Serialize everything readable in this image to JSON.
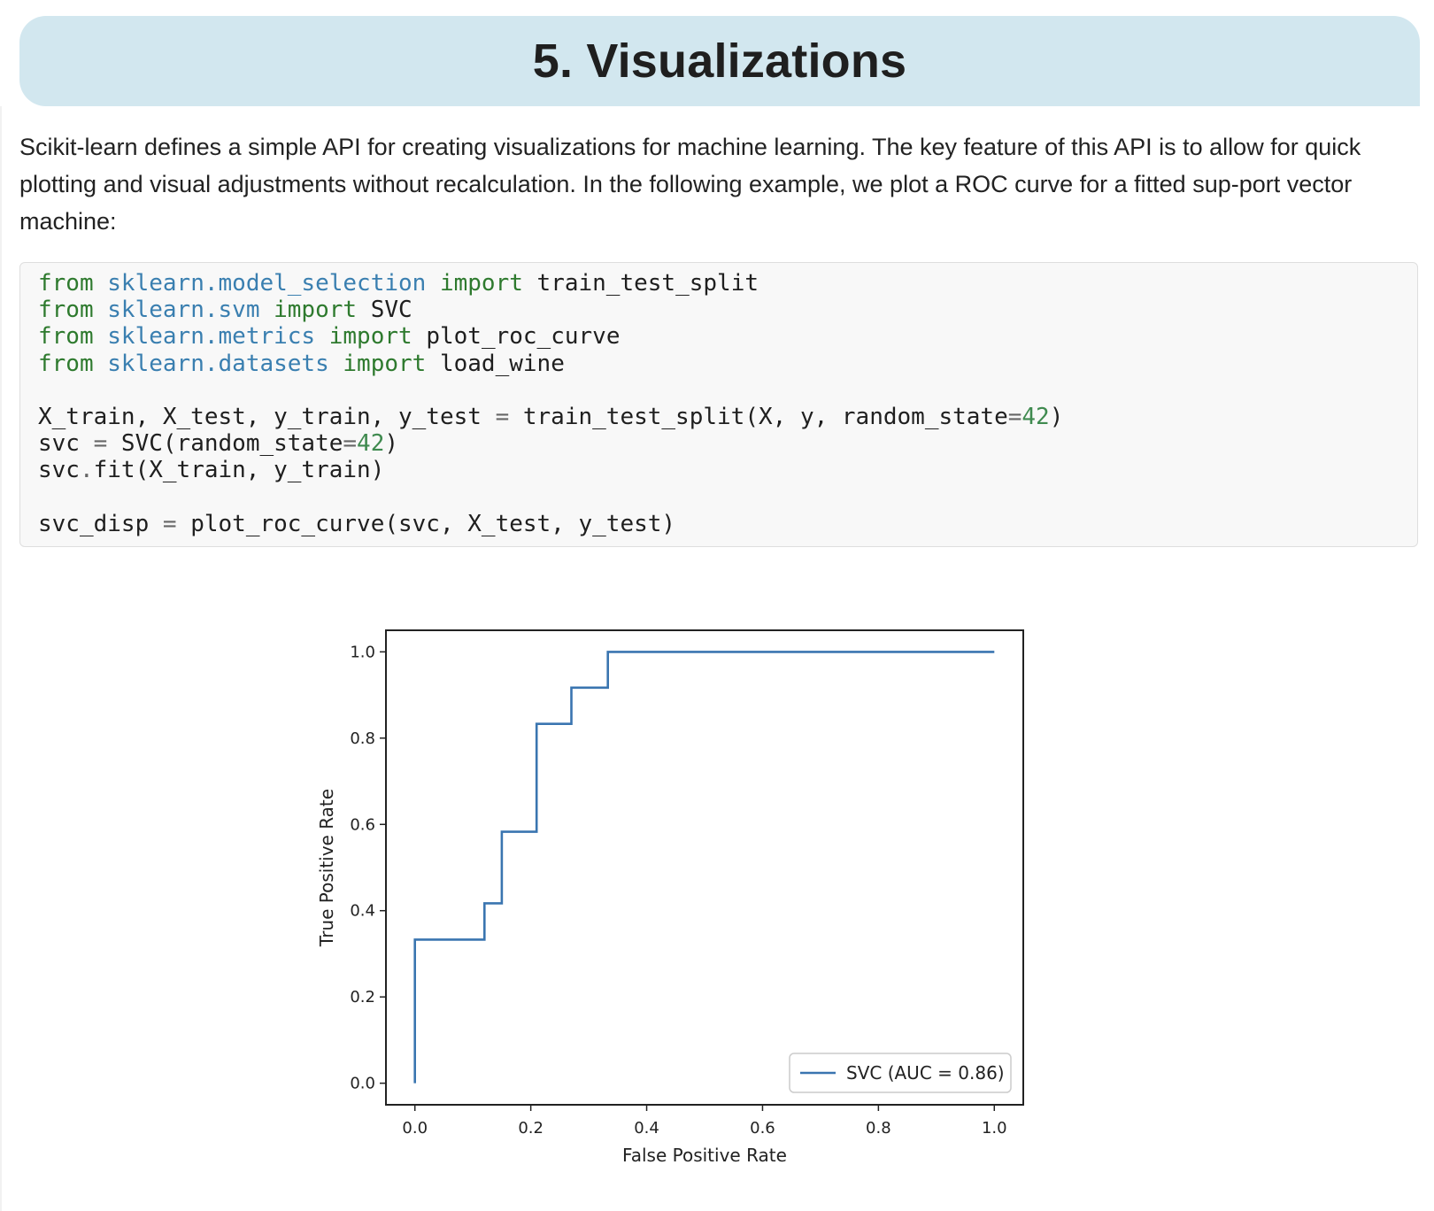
{
  "section": {
    "title": "5. Visualizations"
  },
  "intro_text": "Scikit-learn defines a simple API for creating visualizations for machine learning. The key feature of this API is to allow for quick plotting and visual adjustments without recalculation. In the following example, we plot a ROC curve for a fitted sup-port vector machine:",
  "code": {
    "lines": [
      "from sklearn.model_selection import train_test_split",
      "from sklearn.svm import SVC",
      "from sklearn.metrics import plot_roc_curve",
      "from sklearn.datasets import load_wine",
      "",
      "X_train, X_test, y_train, y_test = train_test_split(X, y, random_state=42)",
      "svc = SVC(random_state=42)",
      "svc.fit(X_train, y_train)",
      "",
      "svc_disp = plot_roc_curve(svc, X_test, y_test)"
    ]
  },
  "colors": {
    "header_bg": "#d2e7ef",
    "code_bg": "#f8f8f8",
    "keyword": "#2e7a2e",
    "module": "#3a7fb0",
    "number": "#3f8a4f",
    "series_line": "#3a75b0"
  },
  "chart_data": {
    "type": "line",
    "title": "",
    "xlabel": "False Positive Rate",
    "ylabel": "True Positive Rate",
    "xlim": [
      -0.05,
      1.05
    ],
    "ylim": [
      -0.05,
      1.05
    ],
    "xticks": [
      "0.0",
      "0.2",
      "0.4",
      "0.6",
      "0.8",
      "1.0"
    ],
    "yticks": [
      "0.0",
      "0.2",
      "0.4",
      "0.6",
      "0.8",
      "1.0"
    ],
    "grid": false,
    "legend_position": "lower-right",
    "series": [
      {
        "name": "SVC (AUC = 0.86)",
        "color": "#3a75b0",
        "x": [
          0.0,
          0.0,
          0.12,
          0.12,
          0.15,
          0.15,
          0.21,
          0.21,
          0.27,
          0.27,
          0.333,
          0.333,
          1.0
        ],
        "y": [
          0.0,
          0.333,
          0.333,
          0.417,
          0.417,
          0.583,
          0.583,
          0.833,
          0.833,
          0.917,
          0.917,
          1.0,
          1.0
        ]
      }
    ]
  }
}
